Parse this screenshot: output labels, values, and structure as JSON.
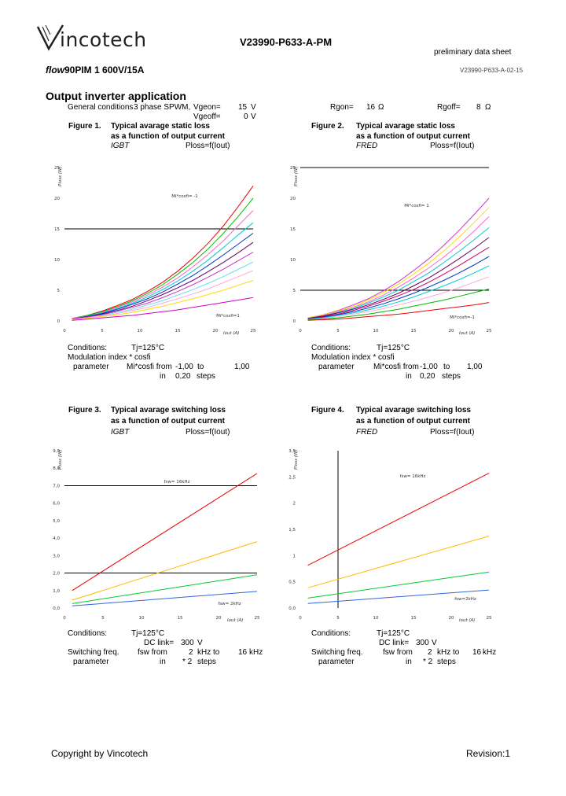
{
  "header": {
    "logo_text": "incotech",
    "logo_full": "Vincotech",
    "doc_number": "V23990-P633-A-PM",
    "preliminary": "preliminary data sheet",
    "product_italic": "flow",
    "product_rest": "90PIM 1  600V/15A",
    "doc_version": "V23990-P633-A-02-15"
  },
  "section": {
    "title": "Output inverter application",
    "general_label": "General conditions",
    "general_value": "3 phase SPWM,",
    "vgeon_label": "Vgeon=",
    "vgeon_value": "15",
    "vgeon_unit": "V",
    "vgeoff_label": "Vgeoff=",
    "vgeoff_value": "0",
    "vgeoff_unit": "V",
    "rgon_label": "Rgon=",
    "rgon_value": "16",
    "rgon_unit": "Ω",
    "rgoff_label": "Rgoff=",
    "rgoff_value": "8",
    "rgoff_unit": "Ω"
  },
  "figures": {
    "fig1": {
      "num": "Figure 1.",
      "title1": "Typical avarage static loss",
      "title2": "as a function of output current",
      "device": "IGBT",
      "formula": "Ploss=f(Iout)"
    },
    "fig2": {
      "num": "Figure 2.",
      "title1": "Typical avarage static loss",
      "title2": "as a function of output current",
      "device": "FRED",
      "formula": "Ploss=f(Iout)"
    },
    "fig3": {
      "num": "Figure 3.",
      "title1": "Typical avarage switching loss",
      "title2": "as a function of output current",
      "device": "IGBT",
      "formula": "Ploss=f(Iout)"
    },
    "fig4": {
      "num": "Figure 4.",
      "title1": "Typical avarage switching loss",
      "title2": "as a function of output current",
      "device": "FRED",
      "formula": "Ploss=f(Iout)"
    }
  },
  "conditions_static": {
    "cond_label": "Conditions:",
    "tj": "Tj=125°C",
    "mod_line": "Modulation index * cosfi",
    "param_label": "parameter",
    "from_label": "Mi*cosfi from",
    "from_val": "-1,00",
    "to_label": "to",
    "to_val": "1,00",
    "in_label": "in",
    "steps": "0,20",
    "steps_label": "steps"
  },
  "conditions_switching": {
    "cond_label": "Conditions:",
    "tj": "Tj=125°C",
    "dc_label": "DC link=",
    "dc_val": "300",
    "dc_unit": "V",
    "sw_label": "Switching freq.",
    "fsw_from": "fsw from",
    "from_val": "2",
    "from_unit": "kHz to",
    "to_val": "16",
    "to_unit": "kHz",
    "param_label": "parameter",
    "in_label": "in",
    "steps": "* 2",
    "steps_label": "steps"
  },
  "footer": {
    "copyright": "Copyright by Vincotech",
    "revision": "Revision:1"
  },
  "chart_data": [
    {
      "type": "line",
      "title": "Typical avarage static loss as a function of output current - IGBT",
      "xlabel": "Iout (A)",
      "ylabel": "Ploss (W)",
      "xlim": [
        0,
        25
      ],
      "ylim": [
        0,
        25
      ],
      "x_ticks": [
        "0",
        "5",
        "10",
        "15",
        "20",
        "25"
      ],
      "y_ticks": [
        "0",
        "5",
        "10",
        "15",
        "20",
        "25"
      ],
      "annotations": [
        "Mi*cosfi= -1",
        "Mi*cosfi=1"
      ],
      "hlines": [
        15
      ],
      "x": [
        1,
        3,
        5,
        7,
        9,
        11,
        13,
        15,
        17,
        19,
        21,
        23,
        25
      ],
      "series": [
        {
          "name": "Mi*cosfi=1",
          "color": "#ee0000",
          "values": [
            0.4,
            0.9,
            1.6,
            2.5,
            3.5,
            4.8,
            6.3,
            8.1,
            10.2,
            12.6,
            15.4,
            18.6,
            22.0
          ]
        },
        {
          "name": "Mi*cosfi=0.8",
          "color": "#00bb00",
          "values": [
            0.4,
            0.9,
            1.5,
            2.3,
            3.3,
            4.5,
            5.9,
            7.6,
            9.5,
            11.7,
            14.2,
            17.0,
            20.0
          ]
        },
        {
          "name": "Mi*cosfi=0.6",
          "color": "#ff66cc",
          "values": [
            0.4,
            0.8,
            1.4,
            2.2,
            3.1,
            4.2,
            5.5,
            7.0,
            8.8,
            10.8,
            13.0,
            15.5,
            18.0
          ]
        },
        {
          "name": "Mi*cosfi=0.4",
          "color": "#00cccc",
          "values": [
            0.3,
            0.8,
            1.3,
            2.0,
            2.9,
            3.9,
            5.1,
            6.5,
            8.1,
            9.9,
            11.9,
            14.0,
            16.0
          ]
        },
        {
          "name": "Mi*cosfi=0.2",
          "color": "#0033cc",
          "values": [
            0.3,
            0.7,
            1.2,
            1.9,
            2.7,
            3.6,
            4.7,
            6.0,
            7.4,
            9.0,
            10.7,
            12.5,
            14.3
          ]
        },
        {
          "name": "Mi*cosfi=0",
          "color": "#660066",
          "values": [
            0.3,
            0.7,
            1.1,
            1.7,
            2.4,
            3.3,
            4.3,
            5.4,
            6.6,
            8.0,
            9.5,
            11.1,
            12.8
          ]
        },
        {
          "name": "Mi*cosfi=-0.2",
          "color": "#cc33cc",
          "values": [
            0.3,
            0.6,
            1.0,
            1.6,
            2.2,
            2.9,
            3.8,
            4.8,
            5.9,
            7.1,
            8.4,
            9.8,
            11.2
          ]
        },
        {
          "name": "Mi*cosfi=-0.4",
          "color": "#66ddee",
          "values": [
            0.2,
            0.5,
            0.9,
            1.4,
            1.9,
            2.6,
            3.3,
            4.2,
            5.1,
            6.1,
            7.2,
            8.4,
            9.6
          ]
        },
        {
          "name": "Mi*cosfi=-0.6",
          "color": "#ffaadd",
          "values": [
            0.2,
            0.5,
            0.8,
            1.2,
            1.7,
            2.2,
            2.9,
            3.6,
            4.4,
            5.2,
            6.2,
            7.2,
            8.2
          ]
        },
        {
          "name": "Mi*cosfi=-0.8",
          "color": "#ffdd00",
          "values": [
            0.2,
            0.4,
            0.7,
            1.0,
            1.4,
            1.9,
            2.4,
            3.0,
            3.6,
            4.3,
            5.0,
            5.8,
            6.6
          ]
        },
        {
          "name": "Mi*cosfi=-1",
          "color": "#cc00cc",
          "values": [
            0.1,
            0.3,
            0.5,
            0.7,
            0.9,
            1.2,
            1.5,
            1.8,
            2.2,
            2.6,
            3.0,
            3.4,
            3.8
          ]
        }
      ]
    },
    {
      "type": "line",
      "title": "Typical avarage static loss as a function of output current - FRED",
      "xlabel": "Iout (A)",
      "ylabel": "Ploss (W)",
      "xlim": [
        0,
        25
      ],
      "ylim": [
        0,
        25
      ],
      "x_ticks": [
        "0",
        "5",
        "10",
        "15",
        "20",
        "25"
      ],
      "y_ticks": [
        "0",
        "5",
        "10",
        "15",
        "20",
        "25"
      ],
      "annotations": [
        "Mi*cosfi= 1",
        "Mi*cosfi=-1"
      ],
      "hlines": [
        25,
        5
      ],
      "x": [
        1,
        3,
        5,
        7,
        9,
        11,
        13,
        15,
        17,
        19,
        21,
        23,
        25
      ],
      "series": [
        {
          "name": "Mi*cosfi=-1",
          "color": "#cc33cc",
          "values": [
            0.5,
            1.0,
            1.7,
            2.6,
            3.6,
            4.9,
            6.4,
            8.2,
            10.1,
            12.3,
            14.7,
            17.3,
            20.0
          ]
        },
        {
          "name": "Mi*cosfi=-0.8",
          "color": "#ffdd00",
          "values": [
            0.5,
            1.0,
            1.6,
            2.4,
            3.4,
            4.6,
            6.0,
            7.6,
            9.4,
            11.4,
            13.6,
            16.0,
            18.5
          ]
        },
        {
          "name": "Mi*cosfi=-0.6",
          "color": "#ff66cc",
          "values": [
            0.4,
            0.9,
            1.5,
            2.2,
            3.1,
            4.2,
            5.5,
            7.0,
            8.6,
            10.4,
            12.4,
            14.6,
            17.0
          ]
        },
        {
          "name": "Mi*cosfi=-0.4",
          "color": "#00cccc",
          "values": [
            0.4,
            0.8,
            1.4,
            2.0,
            2.9,
            3.9,
            5.0,
            6.4,
            7.8,
            9.5,
            11.3,
            13.2,
            15.2
          ]
        },
        {
          "name": "Mi*cosfi=-0.2",
          "color": "#660066",
          "values": [
            0.4,
            0.8,
            1.3,
            1.9,
            2.6,
            3.5,
            4.5,
            5.7,
            7.0,
            8.5,
            10.1,
            11.8,
            13.6
          ]
        },
        {
          "name": "Mi*cosfi=0",
          "color": "#cc0066",
          "values": [
            0.3,
            0.7,
            1.1,
            1.7,
            2.4,
            3.2,
            4.1,
            5.1,
            6.3,
            7.6,
            9.0,
            10.5,
            12.0
          ]
        },
        {
          "name": "Mi*cosfi=0.2",
          "color": "#0033cc",
          "values": [
            0.3,
            0.6,
            1.0,
            1.5,
            2.1,
            2.8,
            3.6,
            4.5,
            5.5,
            6.6,
            7.8,
            9.1,
            10.5
          ]
        },
        {
          "name": "Mi*cosfi=0.4",
          "color": "#00cccc",
          "values": [
            0.3,
            0.5,
            0.9,
            1.3,
            1.8,
            2.4,
            3.1,
            3.9,
            4.8,
            5.7,
            6.7,
            7.8,
            9.0
          ]
        },
        {
          "name": "Mi*cosfi=0.6",
          "color": "#ffaadd",
          "values": [
            0.2,
            0.4,
            0.7,
            1.1,
            1.5,
            2.0,
            2.6,
            3.2,
            3.9,
            4.6,
            5.4,
            6.3,
            7.2
          ]
        },
        {
          "name": "Mi*cosfi=0.8",
          "color": "#00bb00",
          "values": [
            0.2,
            0.3,
            0.5,
            0.8,
            1.1,
            1.5,
            1.9,
            2.4,
            2.9,
            3.4,
            4.0,
            4.6,
            5.2
          ]
        },
        {
          "name": "Mi*cosfi=1",
          "color": "#ee0000",
          "values": [
            0.1,
            0.2,
            0.3,
            0.5,
            0.7,
            0.9,
            1.1,
            1.4,
            1.7,
            2.0,
            2.3,
            2.6,
            3.0
          ]
        }
      ]
    },
    {
      "type": "line",
      "title": "Typical avarage switching loss as a function of output current - IGBT",
      "xlabel": "Iout (A)",
      "ylabel": "Ploss (W)",
      "xlim": [
        0,
        25
      ],
      "ylim": [
        0,
        9
      ],
      "x_ticks": [
        "0",
        "5",
        "10",
        "15",
        "20",
        "25"
      ],
      "y_ticks": [
        "0,0",
        "1,0",
        "2,0",
        "3,0",
        "4,0",
        "5,0",
        "6,0",
        "7,0",
        "8,0",
        "9,0"
      ],
      "annotations": [
        "fsw= 16kHz",
        "fsw= 2kHz"
      ],
      "hlines": [
        7,
        2
      ],
      "x": [
        1,
        25
      ],
      "series": [
        {
          "name": "fsw=16kHz",
          "color": "#ee0000",
          "values": [
            1.0,
            7.7
          ]
        },
        {
          "name": "fsw=8kHz",
          "color": "#ffbb00",
          "values": [
            0.45,
            3.8
          ]
        },
        {
          "name": "fsw=4kHz",
          "color": "#00cc33",
          "values": [
            0.25,
            1.9
          ]
        },
        {
          "name": "fsw=2kHz",
          "color": "#3366dd",
          "values": [
            0.12,
            0.95
          ]
        }
      ]
    },
    {
      "type": "line",
      "title": "Typical avarage switching loss as a function of output current - FRED",
      "xlabel": "Iout (A)",
      "ylabel": "Ploss (W)",
      "xlim": [
        0,
        25
      ],
      "ylim": [
        0,
        3.5
      ],
      "x_ticks": [
        "0",
        "5",
        "10",
        "15",
        "20",
        "25"
      ],
      "y_ticks": [
        "0,0",
        "0,5",
        "1",
        "1,5",
        "2",
        "2,5",
        "3,5"
      ],
      "annotations": [
        "fsw= 16kHz",
        "fsw=2kHz"
      ],
      "vlines": [
        5
      ],
      "x": [
        1,
        25
      ],
      "series": [
        {
          "name": "fsw=16kHz",
          "color": "#ee0000",
          "values": [
            0.95,
            3.0
          ]
        },
        {
          "name": "fsw=8kHz",
          "color": "#ffbb00",
          "values": [
            0.45,
            1.6
          ]
        },
        {
          "name": "fsw=4kHz",
          "color": "#00cc33",
          "values": [
            0.22,
            0.8
          ]
        },
        {
          "name": "fsw=2kHz",
          "color": "#3366dd",
          "values": [
            0.1,
            0.4
          ]
        }
      ]
    }
  ]
}
